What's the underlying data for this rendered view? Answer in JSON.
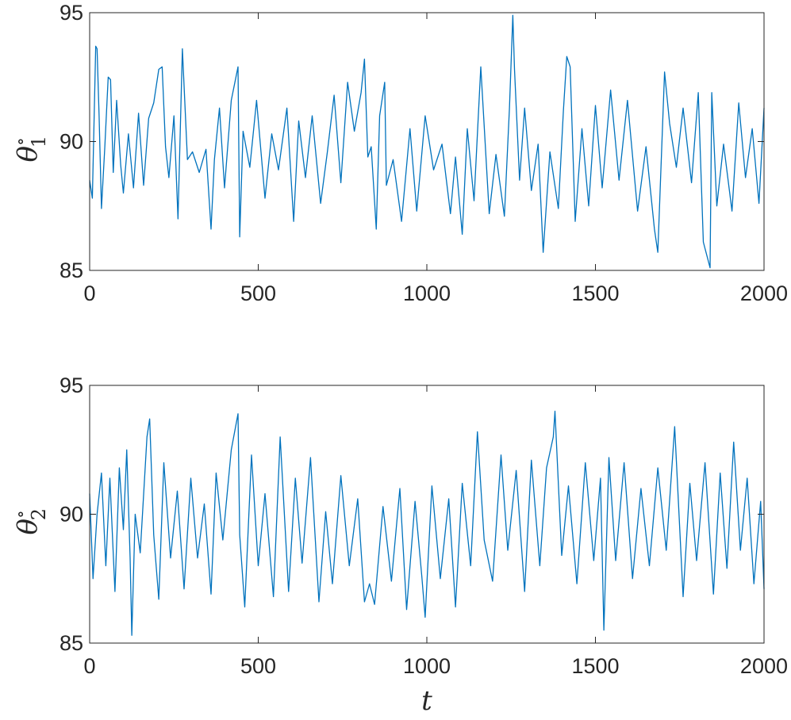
{
  "chart_data": [
    {
      "type": "line",
      "panel": "top",
      "xlabel": "",
      "ylabel": {
        "base": "θ",
        "sup": "∘",
        "sub": "1"
      },
      "xlim": [
        0,
        2000
      ],
      "ylim": [
        85,
        95
      ],
      "xticks": [
        "0",
        "500",
        "1000",
        "1500",
        "2000"
      ],
      "yticks": [
        "85",
        "90",
        "95"
      ],
      "grid": false,
      "line_color": "#0072BD",
      "series": [
        {
          "x": [
            0,
            8,
            18,
            22,
            28,
            35,
            45,
            55,
            62,
            70,
            80,
            92,
            100,
            115,
            130,
            145,
            160,
            175,
            190,
            205,
            215,
            225,
            235,
            250,
            262,
            275,
            290,
            305,
            325,
            345,
            360,
            370,
            385,
            400,
            420,
            440,
            445,
            455,
            475,
            495,
            520,
            540,
            560,
            585,
            605,
            620,
            640,
            660,
            685,
            705,
            725,
            745,
            765,
            785,
            805,
            815,
            825,
            835,
            850,
            860,
            875,
            880,
            900,
            925,
            950,
            970,
            995,
            1020,
            1045,
            1070,
            1085,
            1105,
            1120,
            1140,
            1160,
            1185,
            1205,
            1230,
            1245,
            1255,
            1260,
            1275,
            1290,
            1310,
            1330,
            1345,
            1365,
            1390,
            1405,
            1415,
            1425,
            1440,
            1460,
            1480,
            1500,
            1520,
            1545,
            1570,
            1595,
            1625,
            1650,
            1675,
            1685,
            1705,
            1720,
            1740,
            1760,
            1785,
            1805,
            1820,
            1840,
            1845,
            1860,
            1880,
            1905,
            1925,
            1945,
            1965,
            1985,
            2000
          ],
          "y": [
            88.5,
            87.8,
            93.7,
            93.6,
            91.0,
            87.4,
            89.8,
            92.5,
            92.4,
            88.8,
            91.6,
            89.1,
            88.0,
            90.3,
            88.2,
            91.1,
            88.3,
            90.9,
            91.5,
            92.8,
            92.9,
            89.8,
            88.6,
            91.0,
            87.0,
            93.6,
            89.3,
            89.6,
            88.8,
            89.7,
            86.6,
            89.3,
            91.3,
            88.2,
            91.6,
            92.9,
            86.3,
            90.4,
            89.0,
            91.6,
            87.8,
            90.3,
            88.9,
            91.3,
            86.9,
            90.8,
            88.6,
            91.0,
            87.6,
            89.6,
            91.8,
            88.4,
            92.3,
            90.4,
            91.9,
            93.2,
            89.4,
            89.8,
            86.6,
            91.0,
            92.3,
            88.3,
            89.3,
            86.9,
            90.5,
            87.3,
            91.0,
            88.9,
            89.9,
            87.2,
            89.4,
            86.4,
            90.5,
            87.7,
            92.9,
            87.2,
            89.5,
            87.1,
            91.3,
            94.9,
            92.8,
            88.5,
            91.3,
            88.1,
            89.9,
            85.7,
            89.6,
            87.4,
            91.2,
            93.3,
            92.9,
            86.9,
            90.5,
            87.5,
            91.4,
            88.2,
            92.0,
            88.5,
            91.6,
            87.3,
            89.8,
            86.6,
            85.7,
            92.7,
            90.7,
            89.0,
            91.3,
            88.4,
            91.9,
            86.1,
            85.1,
            91.9,
            87.5,
            89.9,
            87.3,
            91.5,
            88.6,
            90.5,
            87.6,
            91.3
          ]
        }
      ]
    },
    {
      "type": "line",
      "panel": "bottom",
      "xlabel": "t",
      "ylabel": {
        "base": "θ",
        "sup": "∘",
        "sub": "2"
      },
      "xlim": [
        0,
        2000
      ],
      "ylim": [
        85,
        95
      ],
      "xticks": [
        "0",
        "500",
        "1000",
        "1500",
        "2000"
      ],
      "yticks": [
        "85",
        "90",
        "95"
      ],
      "grid": false,
      "line_color": "#0072BD",
      "series": [
        {
          "x": [
            0,
            10,
            22,
            35,
            48,
            60,
            75,
            88,
            100,
            110,
            120,
            125,
            135,
            150,
            170,
            178,
            190,
            205,
            220,
            240,
            260,
            280,
            300,
            320,
            340,
            360,
            375,
            395,
            420,
            440,
            445,
            460,
            480,
            500,
            520,
            545,
            565,
            590,
            610,
            630,
            655,
            680,
            700,
            720,
            745,
            770,
            795,
            815,
            830,
            845,
            870,
            895,
            920,
            940,
            965,
            985,
            995,
            1015,
            1040,
            1065,
            1085,
            1105,
            1130,
            1150,
            1170,
            1195,
            1220,
            1240,
            1265,
            1290,
            1310,
            1335,
            1355,
            1375,
            1380,
            1400,
            1420,
            1445,
            1470,
            1495,
            1515,
            1525,
            1540,
            1560,
            1585,
            1610,
            1635,
            1660,
            1685,
            1710,
            1735,
            1760,
            1780,
            1800,
            1825,
            1850,
            1870,
            1890,
            1910,
            1930,
            1950,
            1970,
            1990,
            2000
          ],
          "y": [
            90.8,
            87.5,
            90.0,
            91.6,
            88.0,
            91.4,
            87.0,
            91.8,
            89.4,
            92.5,
            88.3,
            85.3,
            90.0,
            88.5,
            93.0,
            93.7,
            89.2,
            86.7,
            92.0,
            88.3,
            90.9,
            87.1,
            91.4,
            88.3,
            90.4,
            86.9,
            91.6,
            89.0,
            92.5,
            93.9,
            89.2,
            86.4,
            92.3,
            88.0,
            90.8,
            86.8,
            93.0,
            87.0,
            91.4,
            88.1,
            92.2,
            86.6,
            90.1,
            87.3,
            91.5,
            88.0,
            90.6,
            86.6,
            87.3,
            86.5,
            90.3,
            87.4,
            91.0,
            86.3,
            90.5,
            87.6,
            86.0,
            91.1,
            87.5,
            90.6,
            86.4,
            91.2,
            88.0,
            93.2,
            89.0,
            87.4,
            92.3,
            88.6,
            91.7,
            87.0,
            92.1,
            88.0,
            91.8,
            93.0,
            94.0,
            88.4,
            91.1,
            87.3,
            92.0,
            88.2,
            91.4,
            85.5,
            92.2,
            88.2,
            92.0,
            87.5,
            91.0,
            88.0,
            91.8,
            88.6,
            93.4,
            86.8,
            91.2,
            88.2,
            92.0,
            86.9,
            91.6,
            87.9,
            92.8,
            88.6,
            91.4,
            87.3,
            90.5,
            87.1
          ]
        }
      ]
    }
  ]
}
